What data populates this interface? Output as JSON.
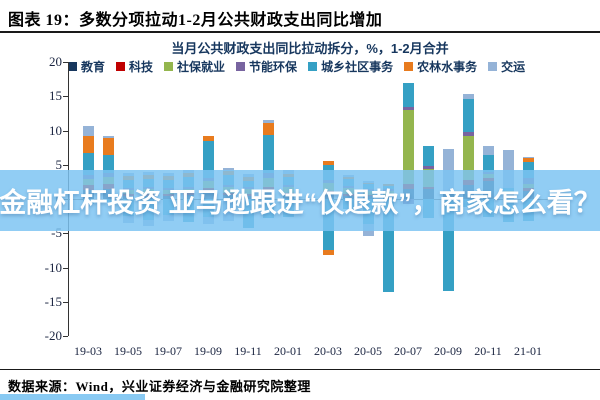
{
  "page": {
    "title": "图表 19：多数分项拉动1-2月公共财政支出同比增加",
    "source": "数据来源：Wind，兴业证券经济与金融研究院整理"
  },
  "banner": {
    "text": "金融杠杆投资 亚马逊跟进“仅退款”，商家怎么看？"
  },
  "chart_data": {
    "type": "bar",
    "stacked": true,
    "title": "当月公共财政支出同比拉动拆分，%，1-2月合并",
    "ylabel": "",
    "xlabel": "",
    "ylim": [
      -20,
      20
    ],
    "ytick_interval": 5,
    "grid": false,
    "legend_position": "top",
    "categories": [
      "19-03",
      "19-04",
      "19-05",
      "19-06",
      "19-07",
      "19-08",
      "19-09",
      "19-10",
      "19-11",
      "19-12",
      "20-01",
      "20-02",
      "20-03",
      "20-04",
      "20-05",
      "20-06",
      "20-07",
      "20-08",
      "20-09",
      "20-10",
      "20-11",
      "20-12",
      "21-01"
    ],
    "x_tick_labels": [
      "19-03",
      "19-05",
      "19-07",
      "19-09",
      "19-11",
      "20-01",
      "20-03",
      "20-05",
      "20-07",
      "20-09",
      "20-11",
      "21-01"
    ],
    "series": [
      {
        "name": "教育",
        "color": "#17375E",
        "values": [
          1.3,
          1.5,
          0.5,
          0.5,
          0.5,
          0.6,
          1.0,
          0.6,
          0.5,
          1.2,
          0.6,
          0,
          0.8,
          0.5,
          0.4,
          0.4,
          1.5,
          1.4,
          0.8,
          2.0,
          2.6,
          0.8,
          1.2
        ],
        "neg": [
          0,
          0,
          0,
          0,
          0,
          0,
          0,
          0,
          0,
          0,
          0,
          0,
          0,
          0,
          0,
          0,
          0,
          0,
          0,
          0,
          0,
          0,
          0
        ]
      },
      {
        "name": "科技",
        "color": "#C00000",
        "values": [
          0.8,
          0.7,
          0.3,
          0.3,
          0.3,
          0.3,
          0.6,
          0.3,
          0.3,
          0.6,
          0.3,
          0,
          0.4,
          0.3,
          0.2,
          0.2,
          0.7,
          0.4,
          0,
          0.8,
          0.4,
          0,
          0.4
        ],
        "neg": [
          0,
          0,
          0,
          0,
          0,
          0,
          0,
          0,
          0,
          0,
          0,
          0,
          0,
          0,
          0,
          0,
          0,
          0,
          0,
          0,
          0,
          0,
          0
        ]
      },
      {
        "name": "社保就业",
        "color": "#94B64E",
        "values": [
          0.8,
          1.0,
          0.5,
          0.6,
          0.5,
          0.6,
          1.0,
          0.8,
          0.6,
          1.2,
          0.8,
          0,
          1.2,
          0.8,
          0.6,
          0.6,
          10.8,
          2.6,
          0,
          6.4,
          0.6,
          0.3,
          0.6
        ],
        "neg": [
          0,
          0,
          0,
          0,
          0,
          0,
          0,
          0,
          0,
          0,
          0,
          0,
          0,
          0,
          0,
          0,
          0,
          0,
          0,
          0,
          0,
          0,
          0
        ]
      },
      {
        "name": "节能环保",
        "color": "#7864A0",
        "values": [
          0.6,
          0.6,
          0.3,
          0.3,
          0.3,
          0.3,
          0.4,
          0.3,
          0.3,
          0.8,
          0.3,
          0,
          0.4,
          0.3,
          0.2,
          0.2,
          0.5,
          0.4,
          0,
          0.6,
          0.3,
          0,
          0.8
        ],
        "neg": [
          0,
          0,
          0,
          0,
          0,
          0,
          0,
          0,
          0,
          0,
          0,
          0,
          0,
          0,
          0,
          0,
          -0.8,
          0,
          0,
          0,
          0,
          0,
          0
        ]
      },
      {
        "name": "城乡社区事务",
        "color": "#35A0C4",
        "values": [
          3.2,
          2.6,
          1.2,
          1.2,
          1.2,
          1.4,
          5.4,
          1.5,
          1.0,
          5.6,
          1.2,
          0,
          2.2,
          1.0,
          0.8,
          0.5,
          3.5,
          3.0,
          0,
          4.8,
          2.5,
          0.5,
          2.4
        ],
        "neg": [
          -0.8,
          -0.5,
          -2.5,
          -3.0,
          -2.4,
          -3.4,
          -2.6,
          0,
          -4.2,
          -2.8,
          -2.6,
          0,
          -7.4,
          -1.5,
          -3.6,
          -13.6,
          0,
          -2.8,
          -13.4,
          -1.2,
          -2.6,
          -3.4,
          -3.2
        ]
      },
      {
        "name": "农林水事务",
        "color": "#E87B1E",
        "values": [
          2.5,
          2.5,
          0.6,
          0.6,
          0.6,
          0.6,
          0.8,
          0.6,
          0.5,
          1.7,
          0.5,
          0,
          0.6,
          0.3,
          0.2,
          0.3,
          0,
          0,
          0,
          0,
          0,
          0,
          0.6
        ],
        "neg": [
          0,
          0,
          0,
          0,
          0,
          0,
          0,
          0,
          0,
          0,
          0,
          0,
          -0.8,
          0,
          0,
          0,
          0,
          0,
          0,
          0,
          0,
          0,
          0
        ]
      },
      {
        "name": "交运",
        "color": "#95B3D7",
        "values": [
          1.5,
          0.3,
          0.4,
          0.4,
          0.4,
          0.4,
          0,
          0.4,
          0.4,
          0.5,
          0.5,
          0,
          0,
          0.3,
          0.2,
          0,
          0,
          0,
          6.5,
          0.7,
          1.4,
          5.5,
          0.2
        ],
        "neg": [
          0,
          0,
          -1.0,
          -1.0,
          -0.8,
          0,
          -1.0,
          -3.2,
          0,
          0,
          0,
          0,
          0,
          0,
          -1.8,
          0,
          0,
          0,
          0,
          0,
          0,
          0,
          0
        ]
      }
    ]
  }
}
